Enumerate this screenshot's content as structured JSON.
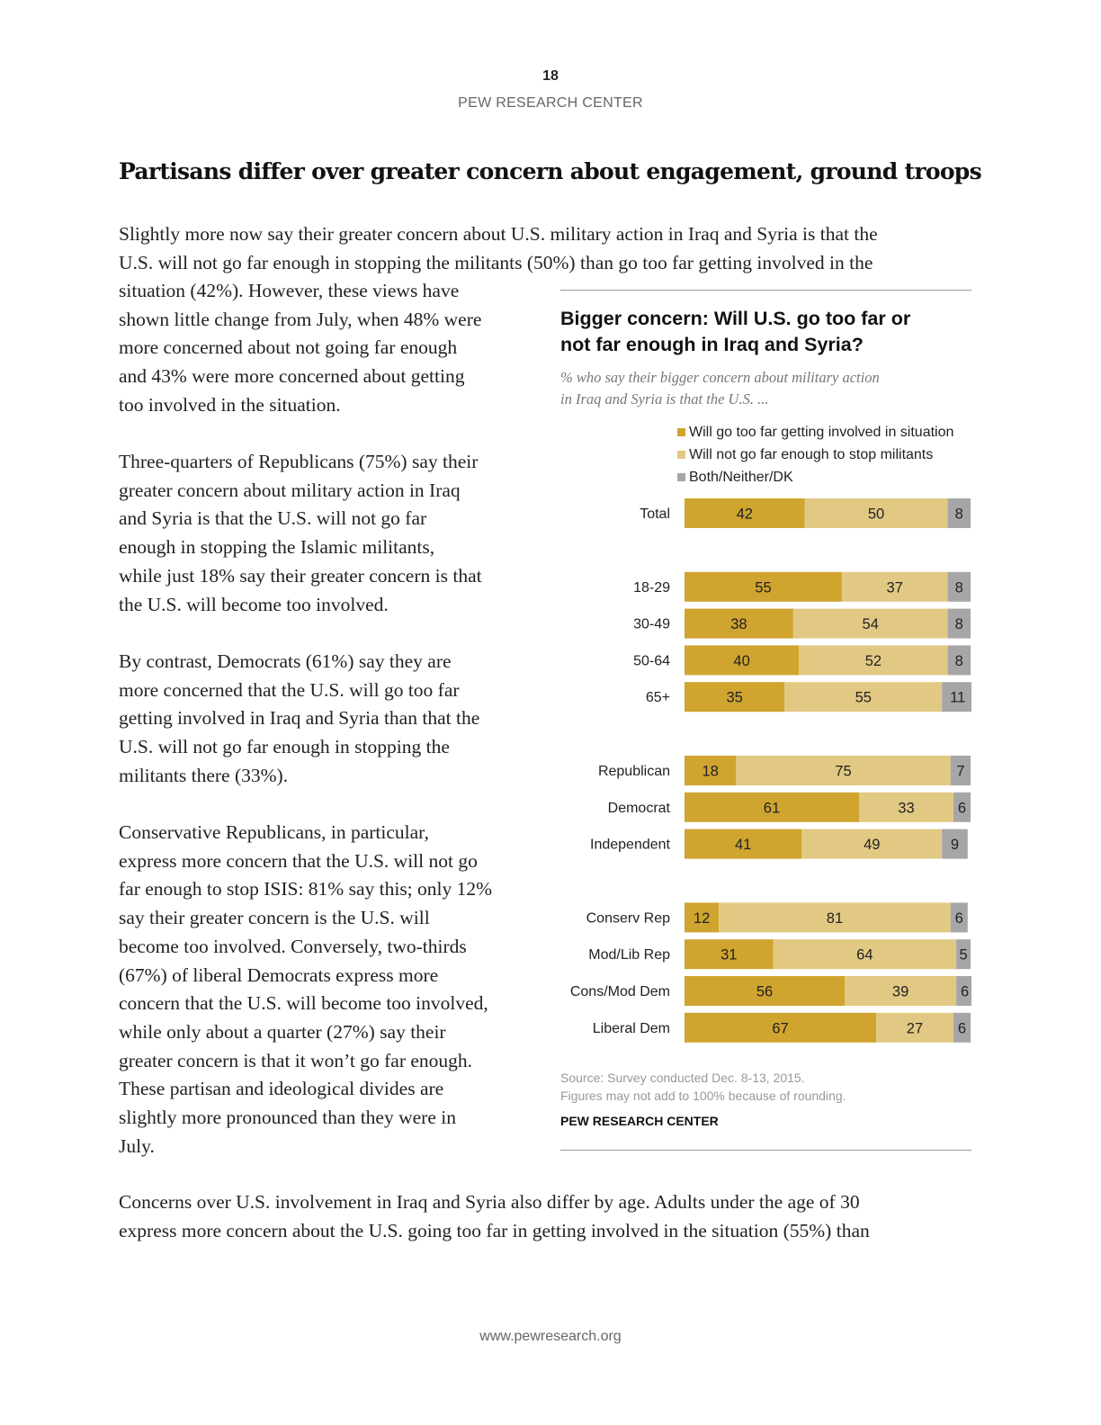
{
  "header": {
    "page_number": "18",
    "organization": "PEW RESEARCH CENTER"
  },
  "title": "Partisans differ over greater concern about engagement, ground troops",
  "intro_lines": [
    "Slightly more now say their greater concern about U.S. military action in Iraq and Syria is that the",
    "U.S. will not go far enough in stopping the militants (50%) than go too far getting involved in the"
  ],
  "column_paragraphs": [
    [
      "situation (42%). However, these views have",
      "shown little change from July, when 48% were",
      "more concerned about not going far enough",
      "and 43% were more concerned about getting",
      "too involved in the situation."
    ],
    [
      "Three-quarters of Republicans (75%) say their",
      "greater concern about military action in Iraq",
      "and Syria is that the U.S. will not go far",
      "enough in stopping the Islamic militants,",
      "while just 18% say their greater concern is that",
      "the U.S. will become too involved."
    ],
    [
      "By contrast, Democrats (61%) say they are",
      "more concerned that the U.S. will go too far",
      "getting involved in Iraq and Syria than that the",
      "U.S. will not go far enough in stopping the",
      "militants there (33%)."
    ],
    [
      "Conservative Republicans, in particular,",
      "express more concern that the U.S. will not go",
      "far enough to stop ISIS: 81% say this; only 12%",
      "say their greater concern is the U.S. will",
      "become too involved. Conversely, two-thirds",
      "(67%) of liberal Democrats express more",
      "concern that the U.S. will become too involved,",
      "while only about a quarter (27%) say their",
      "greater concern is that it won’t go far enough.",
      "These partisan and ideological divides are",
      "slightly more pronounced than they were in",
      "July."
    ]
  ],
  "closing_lines": [
    "Concerns over U.S. involvement in Iraq and Syria also differ by age. Adults under the age of 30",
    "express more concern about the U.S. going too far in getting involved in the situation (55%) than"
  ],
  "chart_data": {
    "type": "bar",
    "orientation": "horizontal",
    "stacked": true,
    "title_lines": [
      "Bigger concern: Will U.S. go too far or",
      "not far enough in Iraq and Syria?"
    ],
    "subtitle_lines": [
      "% who say their bigger concern about military action",
      "in Iraq and Syria is that the U.S. ..."
    ],
    "legend_position": "top",
    "xlim": [
      0,
      100
    ],
    "groups": [
      {
        "categories": [
          "Total"
        ]
      },
      {
        "categories": [
          "18-29",
          "30-49",
          "50-64",
          "65+"
        ]
      },
      {
        "categories": [
          "Republican",
          "Democrat",
          "Independent"
        ]
      },
      {
        "categories": [
          "Conserv Rep",
          "Mod/Lib Rep",
          "Cons/Mod Dem",
          "Liberal Dem"
        ]
      }
    ],
    "categories": [
      "Total",
      "18-29",
      "30-49",
      "50-64",
      "65+",
      "Republican",
      "Democrat",
      "Independent",
      "Conserv Rep",
      "Mod/Lib Rep",
      "Cons/Mod Dem",
      "Liberal Dem"
    ],
    "series": [
      {
        "name": "Will go too far getting involved in situation",
        "color": "#cfa42f",
        "values": [
          42,
          55,
          38,
          40,
          35,
          18,
          61,
          41,
          12,
          31,
          56,
          67
        ]
      },
      {
        "name": "Will not go far enough to stop militants",
        "color": "#e2c983",
        "values": [
          50,
          37,
          54,
          52,
          55,
          75,
          33,
          49,
          81,
          64,
          39,
          27
        ]
      },
      {
        "name": "Both/Neither/DK",
        "color": "#a6a6a6",
        "values": [
          8,
          8,
          8,
          8,
          11,
          7,
          6,
          9,
          6,
          5,
          6,
          6
        ]
      }
    ],
    "source_lines": [
      "Source: Survey conducted Dec. 8-13, 2015.",
      "Figures may not add to 100% because of rounding."
    ],
    "credit": "PEW RESEARCH CENTER"
  },
  "footer": {
    "url": "www.pewresearch.org"
  }
}
